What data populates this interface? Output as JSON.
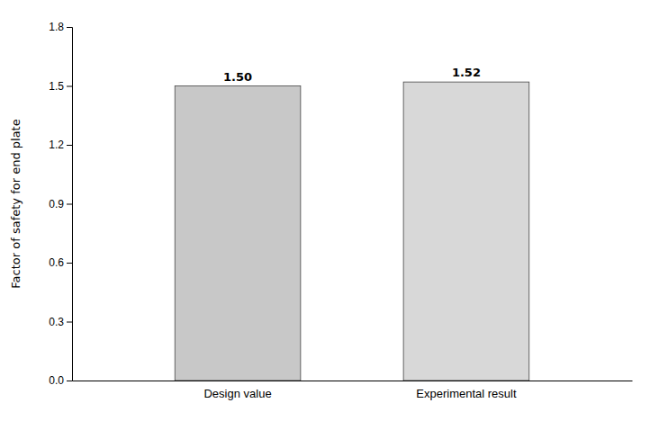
{
  "chart_data": {
    "type": "bar",
    "categories": [
      "Design value",
      "Experimental result"
    ],
    "values": [
      1.5,
      1.52
    ],
    "value_labels": [
      "1.50",
      "1.52"
    ],
    "data_labels": true,
    "colors": [
      "#c8c8c8",
      "#d8d8d8"
    ],
    "ylabel": "Factor of safety for end plate",
    "ylim": [
      0.0,
      1.8
    ],
    "yticks": [
      {
        "value": 0.0,
        "label": "0.0"
      },
      0.3,
      0.6,
      0.9,
      1.2,
      1.5,
      1.8
    ],
    "grid": false
  }
}
